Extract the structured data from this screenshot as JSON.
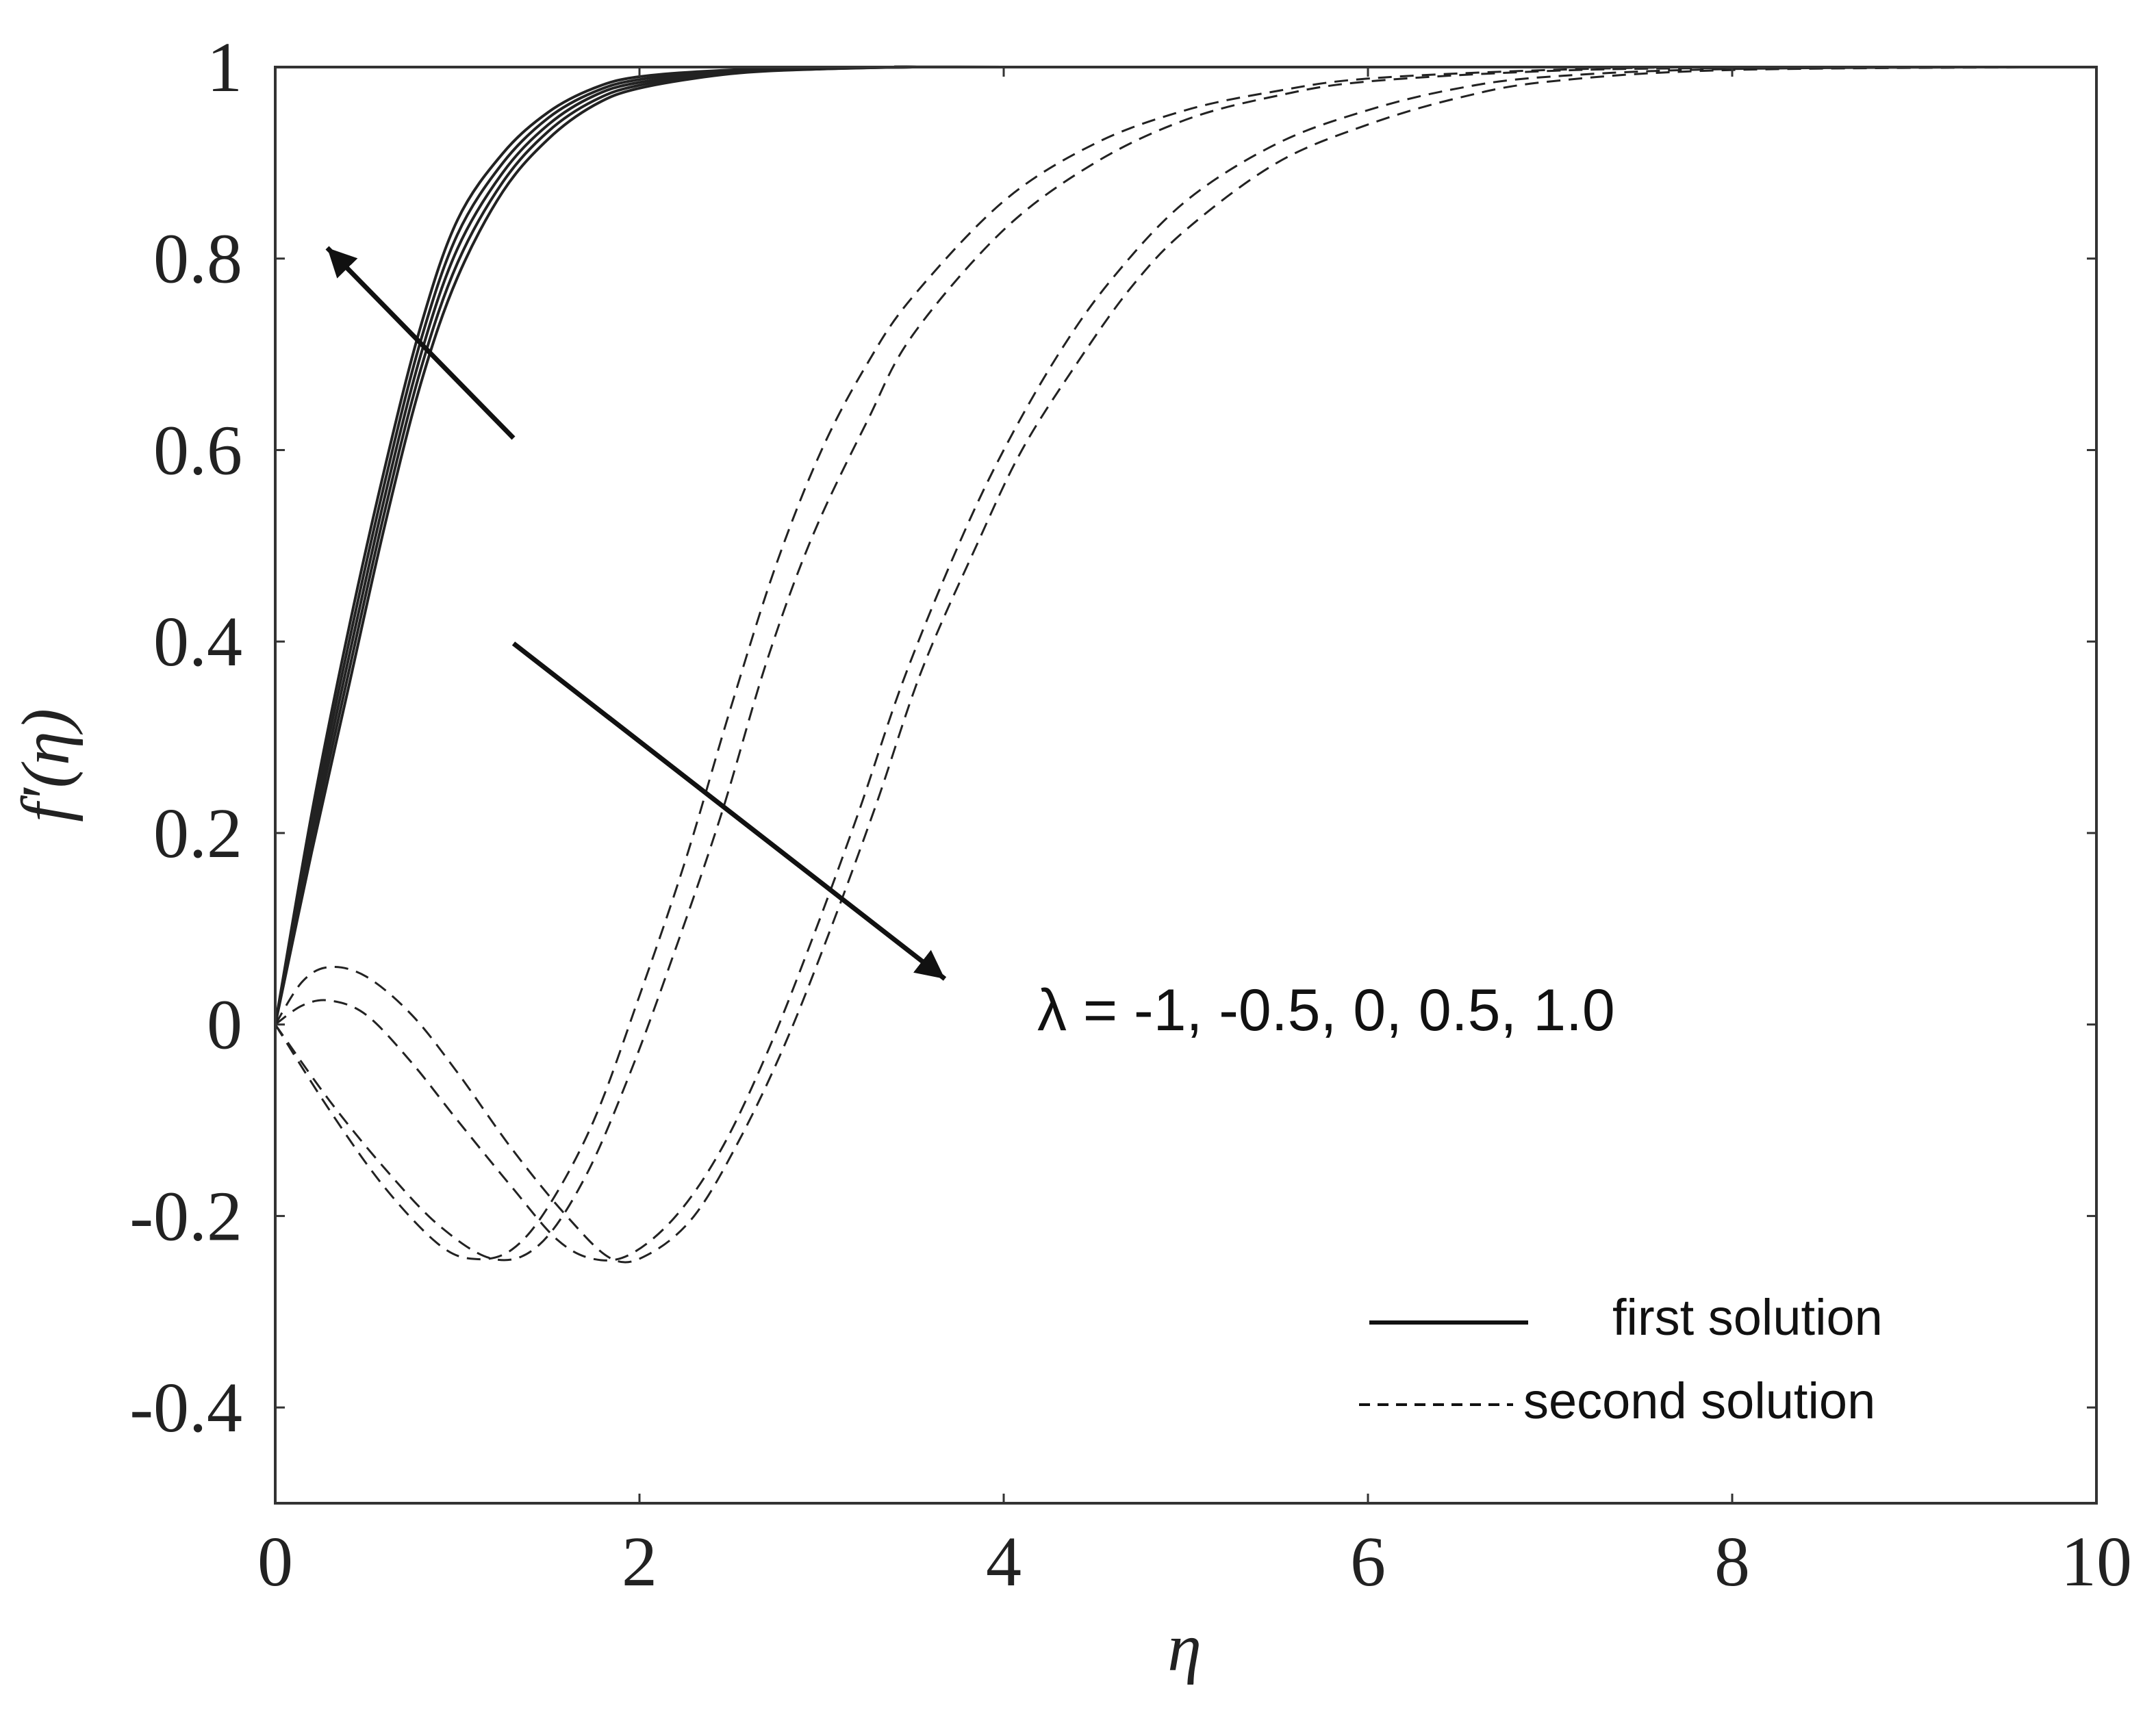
{
  "chart_data": {
    "type": "line",
    "xlabel": "η",
    "ylabel": "f′(η)",
    "xlim": [
      0,
      10
    ],
    "ylim": [
      -0.5,
      1
    ],
    "xticks": [
      0,
      2,
      4,
      6,
      8,
      10
    ],
    "xtick_labels": [
      "0",
      "2",
      "4",
      "6",
      "8",
      "10"
    ],
    "yticks": [
      -0.4,
      -0.2,
      0,
      0.2,
      0.4,
      0.6,
      0.8,
      1
    ],
    "ytick_labels": [
      "-0.4",
      "-0.2",
      "0",
      "0.2",
      "0.4",
      "0.6",
      "0.8",
      "1"
    ],
    "grid": false,
    "legend_position": "bottom-right",
    "legend": [
      {
        "label": "first solution",
        "style": "solid"
      },
      {
        "label": "second solution",
        "style": "dashed"
      }
    ],
    "annotation": "λ = -1, -0.5, 0, 0.5, 1.0",
    "series": [
      {
        "style": "solid",
        "points": [
          [
            0,
            0
          ],
          [
            0.2,
            0.18
          ],
          [
            0.4,
            0.35
          ],
          [
            0.6,
            0.52
          ],
          [
            0.8,
            0.67
          ],
          [
            1,
            0.78
          ],
          [
            1.25,
            0.87
          ],
          [
            1.5,
            0.925
          ],
          [
            1.75,
            0.96
          ],
          [
            2,
            0.978
          ],
          [
            2.5,
            0.993
          ],
          [
            3,
            0.998
          ],
          [
            3.5,
            1
          ],
          [
            4,
            1
          ],
          [
            10,
            1
          ]
        ]
      },
      {
        "style": "solid",
        "points": [
          [
            0,
            0
          ],
          [
            0.2,
            0.19
          ],
          [
            0.4,
            0.365
          ],
          [
            0.6,
            0.535
          ],
          [
            0.8,
            0.685
          ],
          [
            1,
            0.795
          ],
          [
            1.25,
            0.88
          ],
          [
            1.5,
            0.933
          ],
          [
            1.75,
            0.965
          ],
          [
            2,
            0.981
          ],
          [
            2.5,
            0.994
          ],
          [
            3,
            0.998
          ],
          [
            3.5,
            1
          ],
          [
            4,
            1
          ],
          [
            10,
            1
          ]
        ]
      },
      {
        "style": "solid",
        "points": [
          [
            0,
            0
          ],
          [
            0.2,
            0.2
          ],
          [
            0.4,
            0.38
          ],
          [
            0.6,
            0.55
          ],
          [
            0.8,
            0.7
          ],
          [
            1,
            0.81
          ],
          [
            1.25,
            0.89
          ],
          [
            1.5,
            0.94
          ],
          [
            1.75,
            0.97
          ],
          [
            2,
            0.984
          ],
          [
            2.5,
            0.995
          ],
          [
            3,
            0.999
          ],
          [
            3.5,
            1
          ],
          [
            4,
            1
          ],
          [
            10,
            1
          ]
        ]
      },
      {
        "style": "solid",
        "points": [
          [
            0,
            0
          ],
          [
            0.2,
            0.21
          ],
          [
            0.4,
            0.395
          ],
          [
            0.6,
            0.565
          ],
          [
            0.8,
            0.715
          ],
          [
            1,
            0.825
          ],
          [
            1.25,
            0.9
          ],
          [
            1.5,
            0.947
          ],
          [
            1.75,
            0.974
          ],
          [
            2,
            0.987
          ],
          [
            2.5,
            0.996
          ],
          [
            3,
            0.999
          ],
          [
            3.5,
            1
          ],
          [
            4,
            1
          ],
          [
            10,
            1
          ]
        ]
      },
      {
        "style": "solid",
        "points": [
          [
            0,
            0
          ],
          [
            0.2,
            0.22
          ],
          [
            0.4,
            0.41
          ],
          [
            0.6,
            0.58
          ],
          [
            0.8,
            0.73
          ],
          [
            1,
            0.84
          ],
          [
            1.25,
            0.91
          ],
          [
            1.5,
            0.953
          ],
          [
            1.75,
            0.978
          ],
          [
            2,
            0.99
          ],
          [
            2.5,
            0.997
          ],
          [
            3,
            0.999
          ],
          [
            3.5,
            1
          ],
          [
            4,
            1
          ],
          [
            10,
            1
          ]
        ]
      },
      {
        "style": "dashed",
        "points": [
          [
            0,
            0
          ],
          [
            0.3,
            -0.09
          ],
          [
            0.6,
            -0.17
          ],
          [
            0.9,
            -0.23
          ],
          [
            1.1,
            -0.245
          ],
          [
            1.3,
            -0.235
          ],
          [
            1.5,
            -0.19
          ],
          [
            1.75,
            -0.1
          ],
          [
            2,
            0.03
          ],
          [
            2.25,
            0.17
          ],
          [
            2.5,
            0.33
          ],
          [
            2.75,
            0.48
          ],
          [
            3,
            0.6
          ],
          [
            3.25,
            0.69
          ],
          [
            3.5,
            0.76
          ],
          [
            4,
            0.86
          ],
          [
            4.5,
            0.92
          ],
          [
            5,
            0.955
          ],
          [
            5.5,
            0.975
          ],
          [
            6,
            0.988
          ],
          [
            7,
            0.997
          ],
          [
            8,
            1
          ],
          [
            10,
            1
          ]
        ]
      },
      {
        "style": "dashed",
        "points": [
          [
            0,
            0
          ],
          [
            0.3,
            -0.08
          ],
          [
            0.6,
            -0.15
          ],
          [
            0.9,
            -0.21
          ],
          [
            1.2,
            -0.245
          ],
          [
            1.45,
            -0.23
          ],
          [
            1.7,
            -0.16
          ],
          [
            1.95,
            -0.05
          ],
          [
            2.2,
            0.08
          ],
          [
            2.45,
            0.22
          ],
          [
            2.7,
            0.38
          ],
          [
            2.95,
            0.51
          ],
          [
            3.25,
            0.63
          ],
          [
            3.5,
            0.72
          ],
          [
            4,
            0.83
          ],
          [
            4.5,
            0.9
          ],
          [
            5,
            0.945
          ],
          [
            5.5,
            0.97
          ],
          [
            6,
            0.985
          ],
          [
            7,
            0.996
          ],
          [
            8,
            0.999
          ],
          [
            10,
            1
          ]
        ]
      },
      {
        "style": "dashed",
        "points": [
          [
            0,
            0
          ],
          [
            0.15,
            0.02
          ],
          [
            0.3,
            0.025
          ],
          [
            0.5,
            0.01
          ],
          [
            0.75,
            -0.04
          ],
          [
            1,
            -0.1
          ],
          [
            1.3,
            -0.17
          ],
          [
            1.55,
            -0.225
          ],
          [
            1.75,
            -0.245
          ],
          [
            1.95,
            -0.24
          ],
          [
            2.2,
            -0.2
          ],
          [
            2.45,
            -0.13
          ],
          [
            2.7,
            -0.03
          ],
          [
            2.95,
            0.09
          ],
          [
            3.2,
            0.22
          ],
          [
            3.45,
            0.36
          ],
          [
            3.75,
            0.5
          ],
          [
            4,
            0.6
          ],
          [
            4.3,
            0.7
          ],
          [
            4.6,
            0.78
          ],
          [
            5,
            0.86
          ],
          [
            5.5,
            0.92
          ],
          [
            6,
            0.955
          ],
          [
            6.5,
            0.978
          ],
          [
            7,
            0.99
          ],
          [
            8,
            0.998
          ],
          [
            10,
            1
          ]
        ]
      },
      {
        "style": "dashed",
        "points": [
          [
            0,
            0
          ],
          [
            0.15,
            0.045
          ],
          [
            0.3,
            0.06
          ],
          [
            0.5,
            0.05
          ],
          [
            0.75,
            0.01
          ],
          [
            1,
            -0.05
          ],
          [
            1.3,
            -0.13
          ],
          [
            1.6,
            -0.2
          ],
          [
            1.85,
            -0.245
          ],
          [
            2.05,
            -0.24
          ],
          [
            2.3,
            -0.2
          ],
          [
            2.55,
            -0.12
          ],
          [
            2.8,
            -0.02
          ],
          [
            3.05,
            0.1
          ],
          [
            3.3,
            0.23
          ],
          [
            3.55,
            0.37
          ],
          [
            3.85,
            0.5
          ],
          [
            4.1,
            0.6
          ],
          [
            4.4,
            0.69
          ],
          [
            4.7,
            0.77
          ],
          [
            5,
            0.83
          ],
          [
            5.5,
            0.9
          ],
          [
            6,
            0.94
          ],
          [
            6.5,
            0.968
          ],
          [
            7,
            0.985
          ],
          [
            8,
            0.997
          ],
          [
            10,
            1
          ]
        ]
      }
    ]
  }
}
